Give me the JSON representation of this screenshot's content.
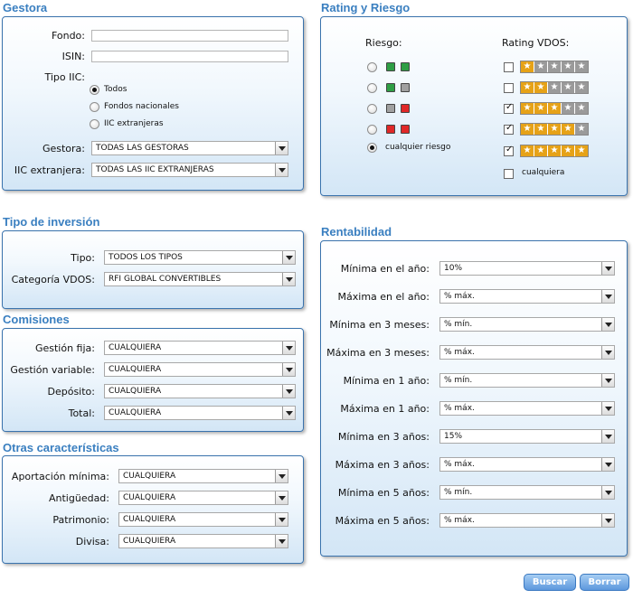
{
  "gestora": {
    "title": "Gestora",
    "fondo_label": "Fondo:",
    "fondo_value": "",
    "isin_label": "ISIN:",
    "isin_value": "",
    "tipo_iic_label": "Tipo IIC:",
    "tipo_iic_options": [
      {
        "label": "Todos",
        "selected": true
      },
      {
        "label": "Fondos nacionales",
        "selected": false
      },
      {
        "label": "IIC extranjeras",
        "selected": false
      }
    ],
    "gestora_label": "Gestora:",
    "gestora_value": "TODAS LAS GESTORAS",
    "iic_extranjera_label": "IIC extranjera:",
    "iic_extranjera_value": "TODAS LAS IIC EXTRANJERAS"
  },
  "rating": {
    "title": "Rating y Riesgo",
    "riesgo_header": "Riesgo:",
    "rating_header": "Rating VDOS:",
    "risk_levels": [
      {
        "colors": [
          "#2e9e44",
          "#2e9e44"
        ],
        "selected": false
      },
      {
        "colors": [
          "#2e9e44",
          "#a0a0a0"
        ],
        "selected": false
      },
      {
        "colors": [
          "#a0a0a0",
          "#e02828"
        ],
        "selected": false
      },
      {
        "colors": [
          "#e02828",
          "#e02828"
        ],
        "selected": false
      }
    ],
    "risk_any_label": "cualquier riesgo",
    "risk_any_selected": true,
    "ratings": [
      {
        "stars": 1,
        "checked": false
      },
      {
        "stars": 2,
        "checked": false
      },
      {
        "stars": 3,
        "checked": true
      },
      {
        "stars": 4,
        "checked": true
      },
      {
        "stars": 5,
        "checked": true
      }
    ],
    "rating_any_label": "cualquiera",
    "rating_any_checked": false,
    "colors": {
      "gold": "#e6a217",
      "grey": "#9a9a9a"
    }
  },
  "tipo_inversion": {
    "title": "Tipo de inversión",
    "tipo_label": "Tipo:",
    "tipo_value": "TODOS LOS TIPOS",
    "categoria_label": "Categoría VDOS:",
    "categoria_value": "RFI GLOBAL CONVERTIBLES"
  },
  "comisiones": {
    "title": "Comisiones",
    "rows": [
      {
        "label": "Gestión fija:",
        "value": "CUALQUIERA"
      },
      {
        "label": "Gestión variable:",
        "value": "CUALQUIERA"
      },
      {
        "label": "Depósito:",
        "value": "CUALQUIERA"
      },
      {
        "label": "Total:",
        "value": "CUALQUIERA"
      }
    ]
  },
  "otras": {
    "title": "Otras características",
    "rows": [
      {
        "label": "Aportación mínima:",
        "value": "CUALQUIERA"
      },
      {
        "label": "Antigüedad:",
        "value": "CUALQUIERA"
      },
      {
        "label": "Patrimonio:",
        "value": "CUALQUIERA"
      },
      {
        "label": "Divisa:",
        "value": "CUALQUIERA"
      }
    ]
  },
  "rentabilidad": {
    "title": "Rentabilidad",
    "rows": [
      {
        "label": "Mínima en el año:",
        "value": "10%"
      },
      {
        "label": "Máxima en el año:",
        "value": "% máx."
      },
      {
        "label": "Mínima en 3 meses:",
        "value": "% mín."
      },
      {
        "label": "Máxima en 3 meses:",
        "value": "% máx."
      },
      {
        "label": "Mínima en 1 año:",
        "value": "% mín."
      },
      {
        "label": "Máxima en 1 año:",
        "value": "% máx."
      },
      {
        "label": "Mínima en 3 años:",
        "value": "15%"
      },
      {
        "label": "Máxima en 3 años:",
        "value": "% máx."
      },
      {
        "label": "Mínima en 5 años:",
        "value": "% mín."
      },
      {
        "label": "Máxima en 5 años:",
        "value": "% máx."
      }
    ]
  },
  "buttons": {
    "buscar": "Buscar",
    "borrar": "Borrar"
  },
  "colors": {
    "accent": "#3a7fc0",
    "panel_border": "#3a73ad"
  }
}
